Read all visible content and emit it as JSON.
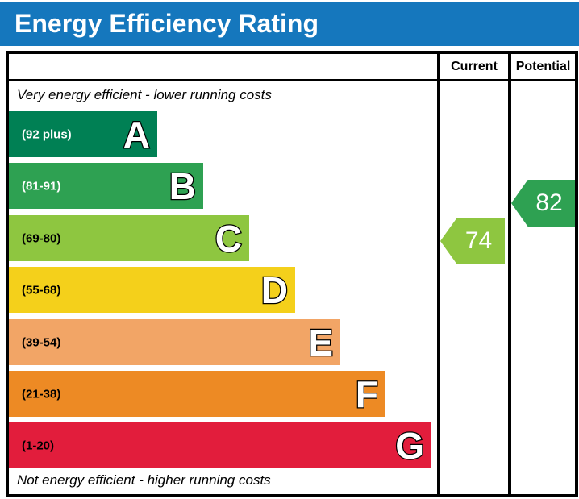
{
  "title": "Energy Efficiency Rating",
  "colors": {
    "title_bg": "#1577bd",
    "title_text": "#ffffff",
    "border": "#000000"
  },
  "header": {
    "current": "Current",
    "potential": "Potential"
  },
  "notes": {
    "top": "Very energy efficient - lower running costs",
    "bottom": "Not energy efficient - higher running costs"
  },
  "bands": [
    {
      "letter": "A",
      "range": "(92 plus)",
      "color": "#008054",
      "label_color": "#ffffff"
    },
    {
      "letter": "B",
      "range": "(81-91)",
      "color": "#2ea152",
      "label_color": "#ffffff"
    },
    {
      "letter": "C",
      "range": "(69-80)",
      "color": "#8ec640",
      "label_color": "#000000"
    },
    {
      "letter": "D",
      "range": "(55-68)",
      "color": "#f4d01b",
      "label_color": "#000000"
    },
    {
      "letter": "E",
      "range": "(39-54)",
      "color": "#f2a566",
      "label_color": "#000000"
    },
    {
      "letter": "F",
      "range": "(21-38)",
      "color": "#ed8a24",
      "label_color": "#000000"
    },
    {
      "letter": "G",
      "range": "(1-20)",
      "color": "#e21d3c",
      "label_color": "#000000"
    }
  ],
  "markers": {
    "current": {
      "value": "74",
      "color": "#8ec640"
    },
    "potential": {
      "value": "82",
      "color": "#2ea152"
    }
  },
  "chart_data": {
    "type": "bar",
    "orientation": "horizontal",
    "title": "Energy Efficiency Rating",
    "categories": [
      "A",
      "B",
      "C",
      "D",
      "E",
      "F",
      "G"
    ],
    "band_ranges": [
      "92 plus",
      "81-91",
      "69-80",
      "55-68",
      "39-54",
      "21-38",
      "1-20"
    ],
    "band_colors": [
      "#008054",
      "#2ea152",
      "#8ec640",
      "#f4d01b",
      "#f2a566",
      "#ed8a24",
      "#e21d3c"
    ],
    "bar_lengths_relative": [
      184,
      241,
      298,
      355,
      411,
      467,
      524
    ],
    "scale": [
      1,
      100
    ],
    "series": [
      {
        "name": "Current",
        "value": 74,
        "band": "C",
        "color": "#8ec640"
      },
      {
        "name": "Potential",
        "value": 82,
        "band": "B",
        "color": "#2ea152"
      }
    ],
    "annotations": [
      "Very energy efficient - lower running costs",
      "Not energy efficient - higher running costs"
    ],
    "legend_position": "none",
    "grid": false
  }
}
